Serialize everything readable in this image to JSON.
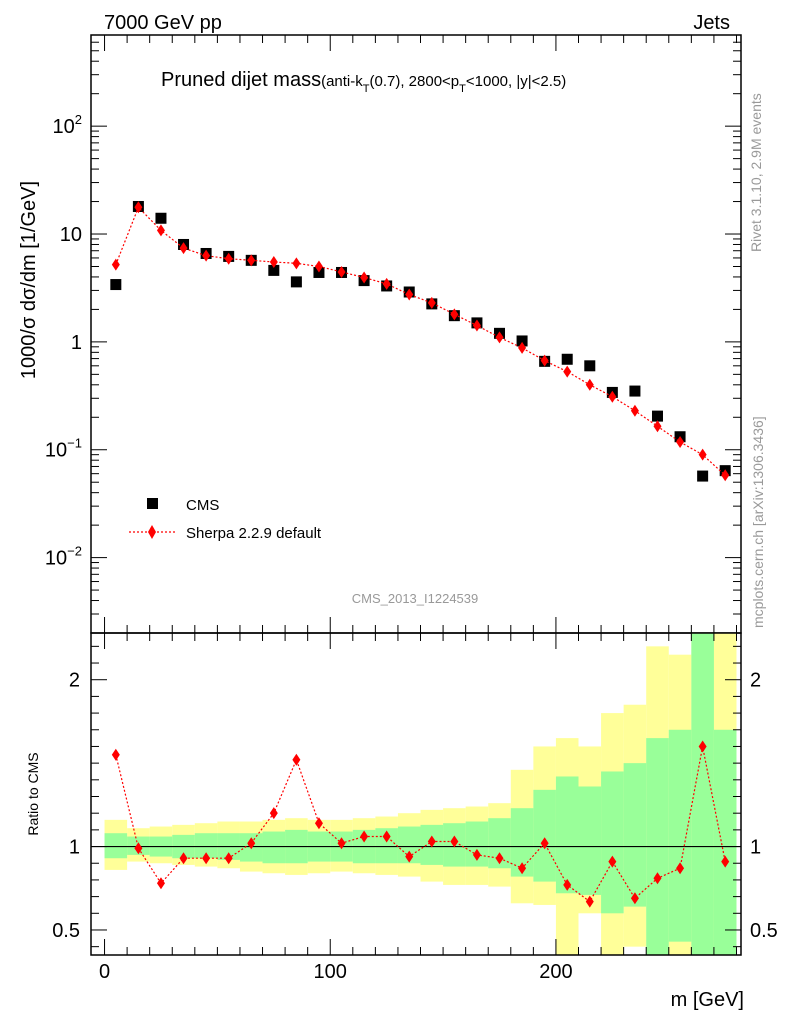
{
  "header": {
    "energy_label": "7000 GeV pp",
    "process_label": "Jets"
  },
  "side_labels": {
    "rivet": "Rivet 3.1.10,  2.9M events",
    "mcplots": "mcplots.cern.ch [arXiv:1306.3436]"
  },
  "analysis_id": "CMS_2013_I1224539",
  "chart_data": [
    {
      "type": "scatter",
      "panel": "main",
      "title": "Pruned dijet mass",
      "title_detail_parts": [
        "(anti-k",
        "T",
        "(0.7), 2800<p",
        "T",
        "<1000, |y|<2.5)"
      ],
      "xlabel": "m [GeV]",
      "ylabel": "1000/σ dσ/dm [1/GeV]",
      "yscale": "log",
      "xlim": [
        -6,
        282
      ],
      "ylim": [
        0.002,
        700
      ],
      "y_ticks": [
        {
          "value": 0.01,
          "base": "10",
          "exp": "−2"
        },
        {
          "value": 0.1,
          "base": "10",
          "exp": "−1"
        },
        {
          "value": 1,
          "base": "1",
          "exp": ""
        },
        {
          "value": 10,
          "base": "10",
          "exp": ""
        },
        {
          "value": 100,
          "base": "10",
          "exp": "2"
        }
      ],
      "legend_position": "lower-left",
      "x": [
        5,
        15,
        25,
        35,
        45,
        55,
        65,
        75,
        85,
        95,
        105,
        115,
        125,
        135,
        145,
        155,
        165,
        175,
        185,
        195,
        205,
        215,
        225,
        235,
        245,
        255,
        265,
        275
      ],
      "series": [
        {
          "name": "CMS",
          "marker": "square",
          "color": "#000000",
          "values": [
            3.4,
            18.0,
            14.0,
            8.0,
            6.6,
            6.2,
            5.7,
            4.6,
            3.6,
            4.4,
            4.4,
            3.7,
            3.3,
            2.9,
            2.25,
            1.75,
            1.5,
            1.2,
            1.02,
            0.66,
            0.69,
            0.6,
            0.34,
            0.35,
            0.205,
            0.132,
            0.057,
            0.064
          ]
        },
        {
          "name": "Sherpa 2.2.9 default",
          "marker": "diamond",
          "color": "#ff0000",
          "values": [
            5.2,
            17.7,
            10.8,
            7.4,
            6.3,
            5.9,
            5.7,
            5.5,
            5.35,
            5.0,
            4.45,
            3.95,
            3.45,
            2.75,
            2.3,
            1.8,
            1.42,
            1.1,
            0.88,
            0.67,
            0.53,
            0.4,
            0.31,
            0.23,
            0.165,
            0.118,
            0.09,
            0.058
          ]
        }
      ]
    },
    {
      "type": "area",
      "panel": "ratio",
      "ylabel": "Ratio to CMS",
      "xlabel": "m [GeV]",
      "xlim": [
        -6,
        282
      ],
      "ylim": [
        0.35,
        2.28
      ],
      "x_ticks": [
        0,
        100,
        200
      ],
      "y_ticks": [
        0.5,
        1,
        2
      ],
      "reference_line": 1,
      "bin_edges": [
        0,
        10,
        20,
        30,
        40,
        50,
        60,
        70,
        80,
        90,
        100,
        110,
        120,
        130,
        140,
        150,
        160,
        170,
        180,
        190,
        200,
        210,
        220,
        230,
        240,
        250,
        260,
        270,
        280
      ],
      "bands": [
        {
          "name": "stat+syst",
          "color": "#ffff99",
          "lower": [
            0.86,
            0.91,
            0.9,
            0.89,
            0.88,
            0.87,
            0.85,
            0.84,
            0.83,
            0.84,
            0.85,
            0.84,
            0.83,
            0.82,
            0.79,
            0.77,
            0.77,
            0.76,
            0.66,
            0.65,
            0.0,
            0.6,
            0.0,
            0.4,
            0.0,
            0.0,
            0.0,
            0.0
          ],
          "upper": [
            1.16,
            1.11,
            1.12,
            1.13,
            1.14,
            1.15,
            1.15,
            1.16,
            1.17,
            1.16,
            1.16,
            1.17,
            1.18,
            1.2,
            1.22,
            1.23,
            1.24,
            1.26,
            1.46,
            1.6,
            1.65,
            1.6,
            1.8,
            1.85,
            2.2,
            2.15,
            2.4,
            2.3
          ]
        },
        {
          "name": "stat",
          "color": "#99ff99",
          "lower": [
            0.93,
            0.95,
            0.94,
            0.93,
            0.93,
            0.92,
            0.91,
            0.9,
            0.9,
            0.91,
            0.91,
            0.9,
            0.9,
            0.9,
            0.89,
            0.88,
            0.88,
            0.87,
            0.82,
            0.79,
            0.72,
            0.71,
            0.6,
            0.64,
            0.0,
            0.43,
            0.0,
            0.0
          ],
          "upper": [
            1.08,
            1.06,
            1.06,
            1.07,
            1.08,
            1.08,
            1.08,
            1.09,
            1.1,
            1.09,
            1.09,
            1.1,
            1.11,
            1.12,
            1.13,
            1.14,
            1.15,
            1.17,
            1.23,
            1.34,
            1.42,
            1.36,
            1.45,
            1.5,
            1.65,
            1.7,
            2.3,
            1.7
          ]
        }
      ],
      "series": [
        {
          "name": "Sherpa 2.2.9 default",
          "marker": "diamond",
          "color": "#ff0000",
          "x": [
            5,
            15,
            25,
            35,
            45,
            55,
            65,
            75,
            85,
            95,
            105,
            115,
            125,
            135,
            145,
            155,
            165,
            175,
            185,
            195,
            205,
            215,
            225,
            235,
            245,
            255,
            265,
            275
          ],
          "values": [
            1.55,
            0.99,
            0.78,
            0.93,
            0.93,
            0.93,
            1.02,
            1.2,
            1.52,
            1.14,
            1.02,
            1.06,
            1.06,
            0.94,
            1.03,
            1.03,
            0.95,
            0.93,
            0.87,
            1.02,
            0.77,
            0.67,
            0.91,
            0.69,
            0.81,
            0.87,
            1.6,
            0.91
          ]
        }
      ]
    }
  ]
}
